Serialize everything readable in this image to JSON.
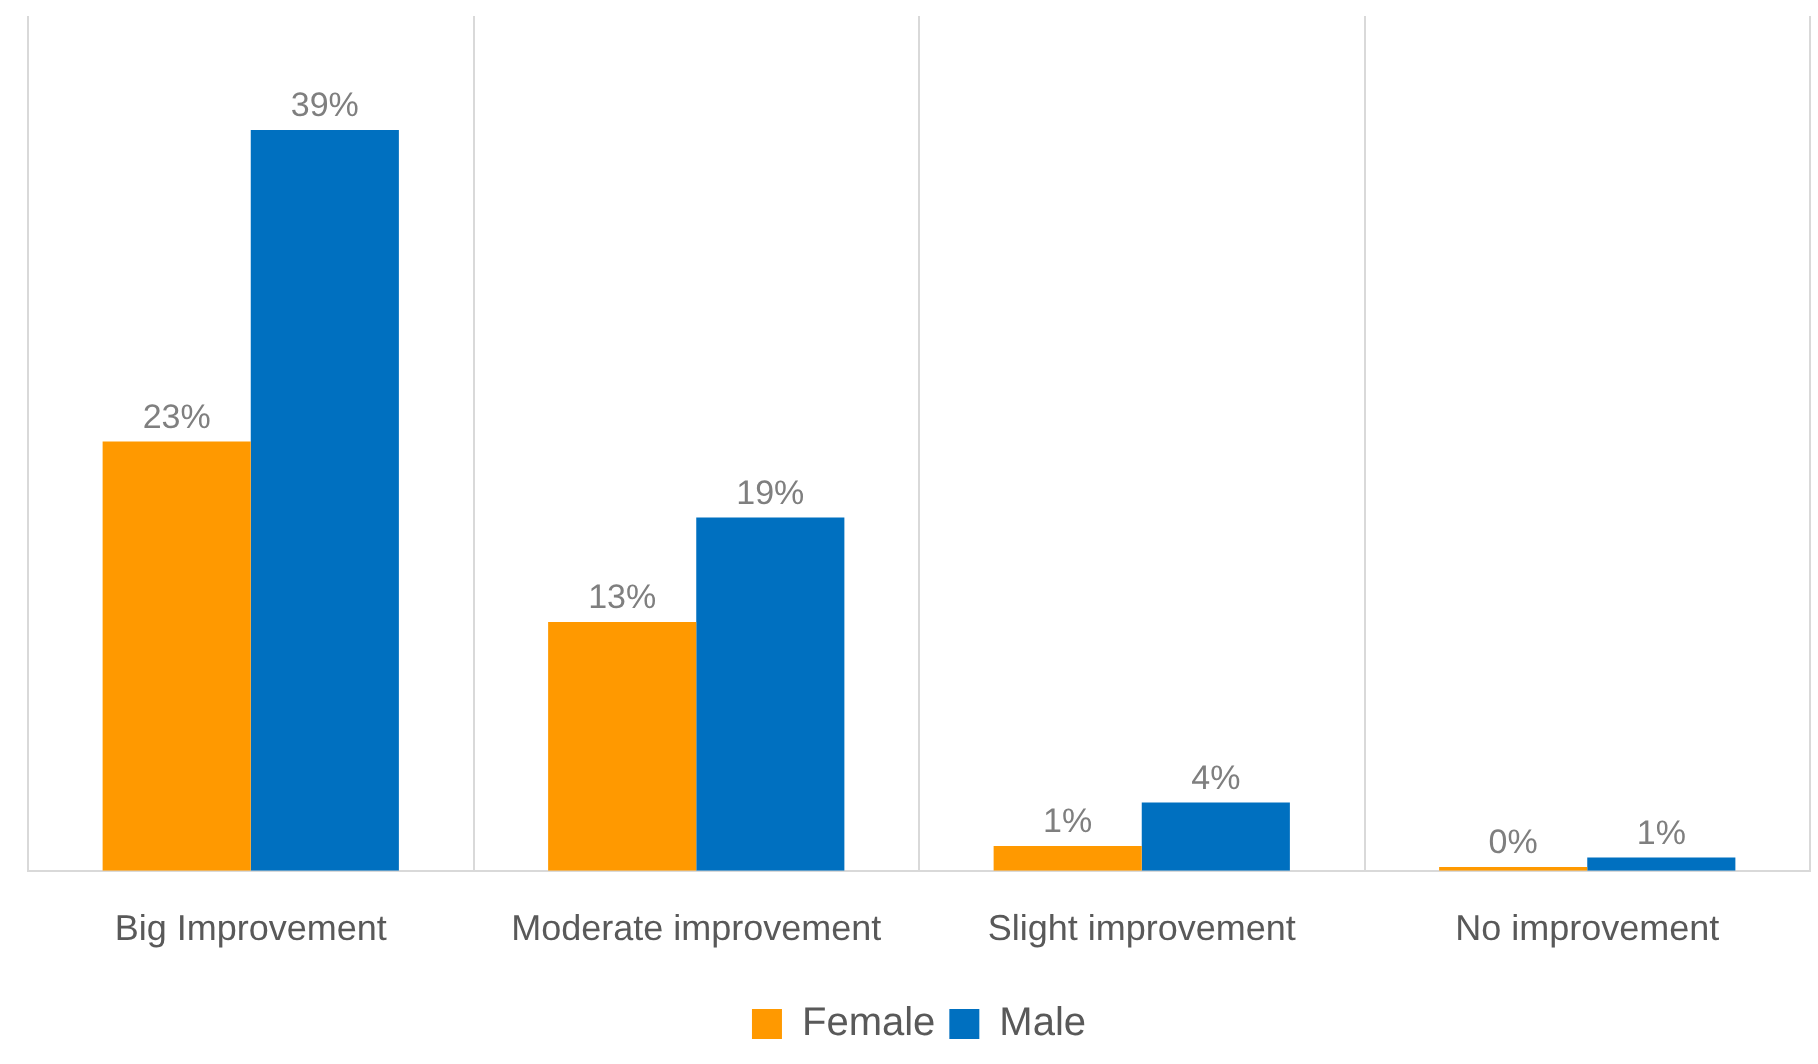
{
  "chart_data": {
    "type": "bar",
    "categories": [
      "Big Improvement",
      "Moderate improvement",
      "Slight improvement",
      "No improvement"
    ],
    "series": [
      {
        "name": "Female",
        "color": "#ff9900",
        "values": [
          22.6,
          13.1,
          1.3,
          0.2
        ],
        "value_labels": [
          "23%",
          "13%",
          "1%",
          "0%"
        ]
      },
      {
        "name": "Male",
        "color": "#0070c0",
        "values": [
          39,
          18.6,
          3.6,
          0.7
        ],
        "value_labels": [
          "39%",
          "19%",
          "4%",
          "1%"
        ]
      }
    ],
    "ylim": [
      0,
      45
    ],
    "grid": "x",
    "legend": "bottom",
    "tick_labels": "x"
  }
}
